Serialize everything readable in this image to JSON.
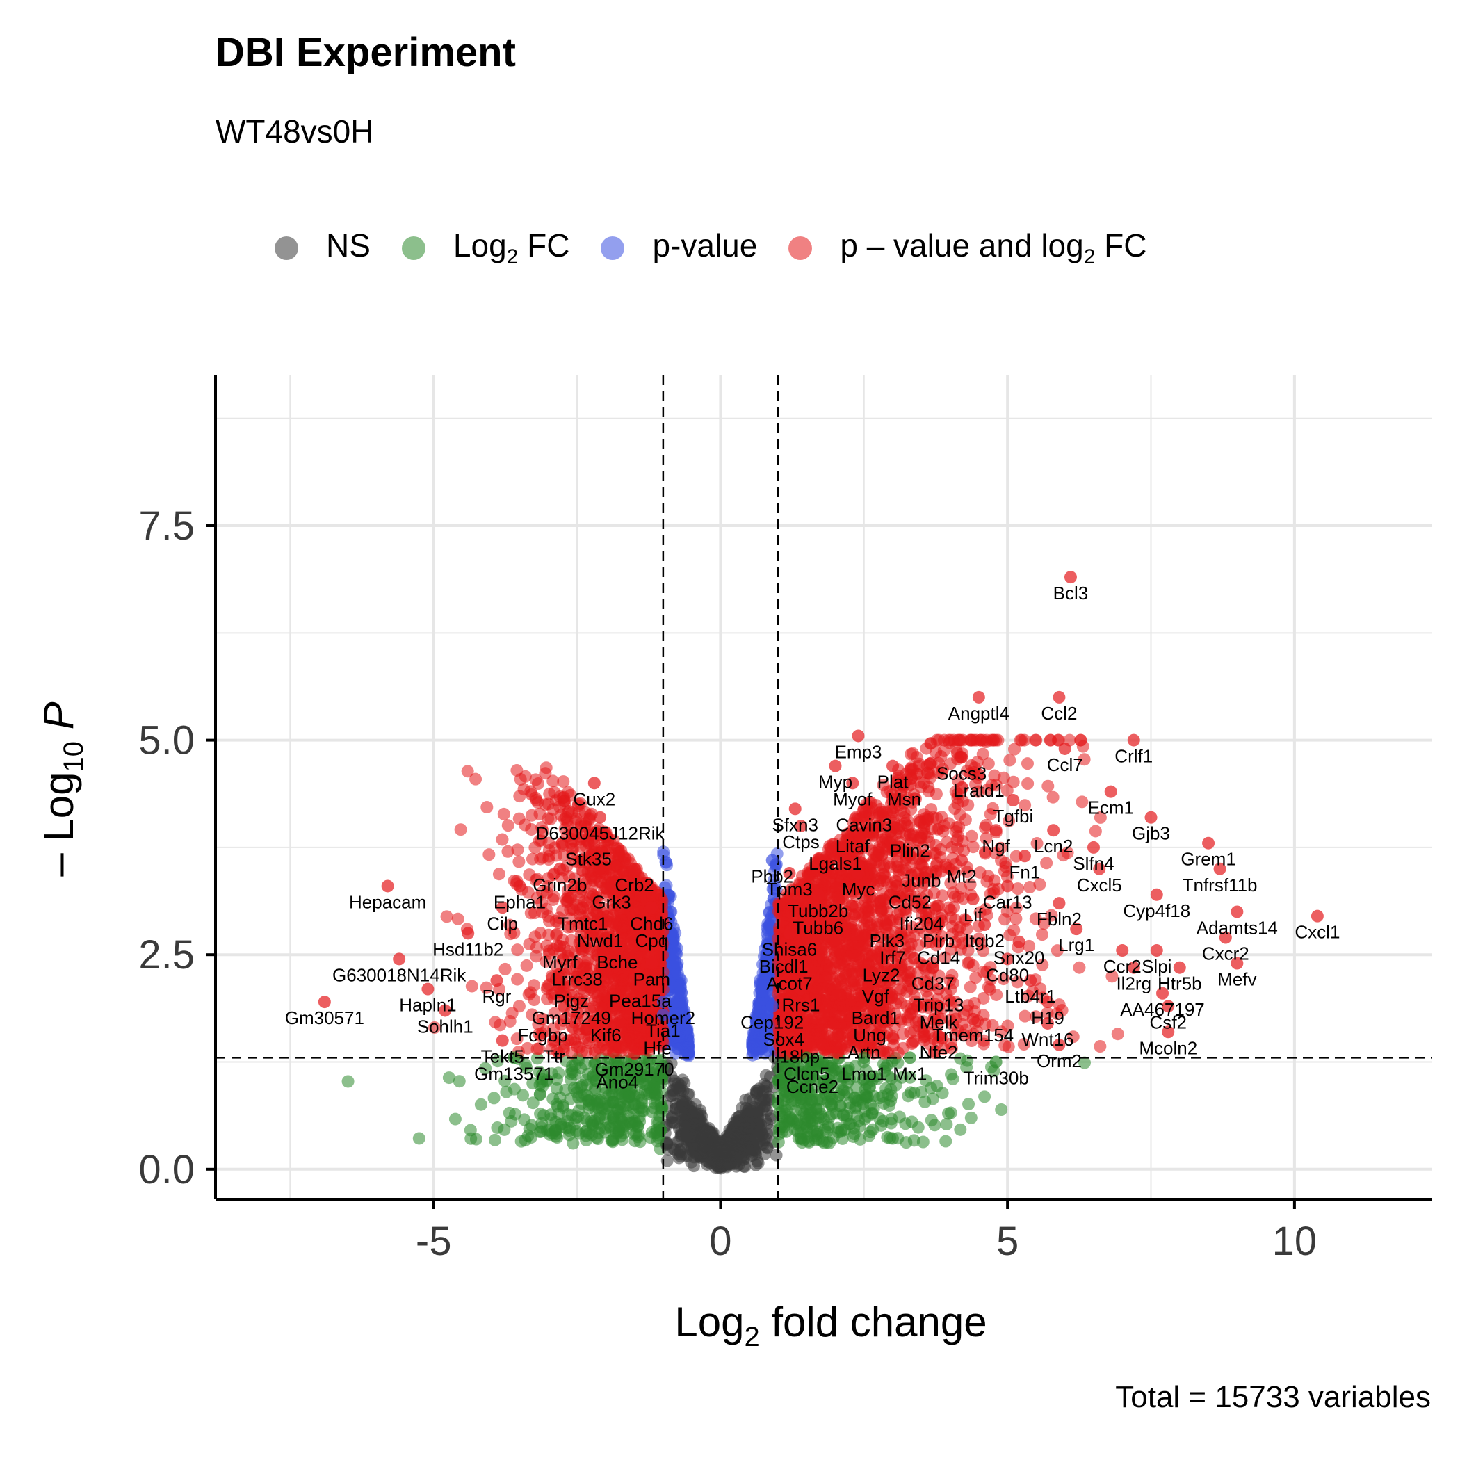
{
  "header": {
    "title": "DBI Experiment",
    "subtitle": "WT48vs0H",
    "caption": "Total = 15733 variables"
  },
  "legend": [
    {
      "label": "NS",
      "sub": "",
      "suffix": "",
      "color": "#3b3b3b"
    },
    {
      "label": "Log",
      "sub": "2",
      "suffix": " FC",
      "color": "#2e8b2e"
    },
    {
      "label": "p-value",
      "sub": "",
      "suffix": "",
      "color": "#3a50e0"
    },
    {
      "label": "p – value and log",
      "sub": "2",
      "suffix": " FC",
      "color": "#e41a1c"
    }
  ],
  "colors": {
    "NS": "#3b3b3b",
    "Log2FC": "#2e8b2e",
    "pvalue": "#3a50e0",
    "both": "#e41a1c",
    "grid": "#e6e6e6"
  },
  "chart_data": {
    "type": "scatter",
    "xlabel": {
      "main": "Log",
      "sub": "2",
      "rest": " fold change"
    },
    "ylabel": {
      "prefix": "– Log",
      "sub": "10",
      "var": "P"
    },
    "xlim": [
      -8.8,
      12.4
    ],
    "ylim": [
      -0.35,
      9.25
    ],
    "x_ticks": [
      -5,
      0,
      5,
      10
    ],
    "x_tick_labels": [
      "-5",
      "0",
      "5",
      "10"
    ],
    "y_ticks": [
      0.0,
      2.5,
      5.0,
      7.5
    ],
    "y_tick_labels": [
      "0.0",
      "2.5",
      "5.0",
      "7.5"
    ],
    "grid": true,
    "legend_position": "top",
    "thresholds": {
      "fc_cutoff": [
        -1,
        1
      ],
      "p_cutoff_neglog10": 1.3
    },
    "total_variables": 15733,
    "labeled_points": [
      {
        "gene": "Bcl3",
        "x": 6.1,
        "y": 6.9
      },
      {
        "gene": "Angptl4",
        "x": 4.5,
        "y": 5.5
      },
      {
        "gene": "Ccl2",
        "x": 5.9,
        "y": 5.5
      },
      {
        "gene": "Emp3",
        "x": 2.4,
        "y": 5.05
      },
      {
        "gene": "Myp",
        "x": 2.0,
        "y": 4.7
      },
      {
        "gene": "Plat",
        "x": 3.0,
        "y": 4.7
      },
      {
        "gene": "Socs3",
        "x": 4.2,
        "y": 4.8
      },
      {
        "gene": "Ccl7",
        "x": 6.0,
        "y": 4.9
      },
      {
        "gene": "Crlf1",
        "x": 7.2,
        "y": 5.0
      },
      {
        "gene": "Lratd1",
        "x": 4.5,
        "y": 4.6
      },
      {
        "gene": "Myof",
        "x": 2.3,
        "y": 4.5
      },
      {
        "gene": "Msn",
        "x": 3.2,
        "y": 4.5
      },
      {
        "gene": "Ecm1",
        "x": 6.8,
        "y": 4.4
      },
      {
        "gene": "Tgfbi",
        "x": 5.1,
        "y": 4.3
      },
      {
        "gene": "Cux2",
        "x": -2.2,
        "y": 4.5
      },
      {
        "gene": "Sfxn3",
        "x": 1.3,
        "y": 4.2
      },
      {
        "gene": "Cavin3",
        "x": 2.5,
        "y": 4.2
      },
      {
        "gene": "Gjb3",
        "x": 7.5,
        "y": 4.1
      },
      {
        "gene": "Ctps",
        "x": 1.4,
        "y": 4.0
      },
      {
        "gene": "Litaf",
        "x": 2.3,
        "y": 3.95
      },
      {
        "gene": "Ngf",
        "x": 4.8,
        "y": 3.95
      },
      {
        "gene": "Lcn2",
        "x": 5.8,
        "y": 3.95
      },
      {
        "gene": "D630045J12Rik",
        "x": -2.1,
        "y": 4.1
      },
      {
        "gene": "Plin2",
        "x": 3.3,
        "y": 3.9
      },
      {
        "gene": "Lgals1",
        "x": 2.0,
        "y": 3.75
      },
      {
        "gene": "Stk35",
        "x": -2.3,
        "y": 3.8
      },
      {
        "gene": "Pbb2",
        "x": 0.9,
        "y": 3.6
      },
      {
        "gene": "Mt2",
        "x": 4.2,
        "y": 3.6
      },
      {
        "gene": "Fn1",
        "x": 5.3,
        "y": 3.65
      },
      {
        "gene": "Slfn4",
        "x": 6.5,
        "y": 3.75
      },
      {
        "gene": "Grem1",
        "x": 8.5,
        "y": 3.8
      },
      {
        "gene": "Grin2b",
        "x": -2.8,
        "y": 3.5
      },
      {
        "gene": "Crb2",
        "x": -1.5,
        "y": 3.5
      },
      {
        "gene": "Tpm3",
        "x": 1.2,
        "y": 3.45
      },
      {
        "gene": "Myc",
        "x": 2.4,
        "y": 3.45
      },
      {
        "gene": "Junb",
        "x": 3.5,
        "y": 3.55
      },
      {
        "gene": "Cxcl5",
        "x": 6.6,
        "y": 3.5
      },
      {
        "gene": "Tnfrsf11b",
        "x": 8.7,
        "y": 3.5
      },
      {
        "gene": "Epha1",
        "x": -3.5,
        "y": 3.3
      },
      {
        "gene": "Grk3",
        "x": -1.9,
        "y": 3.3
      },
      {
        "gene": "Car13",
        "x": 5.0,
        "y": 3.3
      },
      {
        "gene": "Cd52",
        "x": 3.3,
        "y": 3.3
      },
      {
        "gene": "Tubb2b",
        "x": 1.7,
        "y": 3.2
      },
      {
        "gene": "Hepacam",
        "x": -5.8,
        "y": 3.3
      },
      {
        "gene": "Chd6",
        "x": -1.2,
        "y": 3.05
      },
      {
        "gene": "Tmtc1",
        "x": -2.4,
        "y": 3.05
      },
      {
        "gene": "Cyp4f18",
        "x": 7.6,
        "y": 3.2
      },
      {
        "gene": "Lif",
        "x": 4.4,
        "y": 3.15
      },
      {
        "gene": "Fbln2",
        "x": 5.9,
        "y": 3.1
      },
      {
        "gene": "Ifi204",
        "x": 3.5,
        "y": 3.05
      },
      {
        "gene": "Cilp",
        "x": -3.8,
        "y": 3.05
      },
      {
        "gene": "Tubb6",
        "x": 1.7,
        "y": 3.0
      },
      {
        "gene": "Adamts14",
        "x": 9.0,
        "y": 3.0
      },
      {
        "gene": "Cpq",
        "x": -1.2,
        "y": 2.85
      },
      {
        "gene": "Nwd1",
        "x": -2.1,
        "y": 2.85
      },
      {
        "gene": "Itgb2",
        "x": 4.6,
        "y": 2.85
      },
      {
        "gene": "Plk3",
        "x": 2.9,
        "y": 2.85
      },
      {
        "gene": "Pirb",
        "x": 3.8,
        "y": 2.85
      },
      {
        "gene": "Lrg1",
        "x": 6.2,
        "y": 2.8
      },
      {
        "gene": "Shisa6",
        "x": 1.2,
        "y": 2.75
      },
      {
        "gene": "Hsd11b2",
        "x": -4.4,
        "y": 2.75
      },
      {
        "gene": "Cxcr2",
        "x": 8.8,
        "y": 2.7
      },
      {
        "gene": "Cxcl1",
        "x": 10.4,
        "y": 2.95
      },
      {
        "gene": "Snx20",
        "x": 5.2,
        "y": 2.65
      },
      {
        "gene": "Irf7",
        "x": 3.0,
        "y": 2.65
      },
      {
        "gene": "Cd14",
        "x": 3.8,
        "y": 2.65
      },
      {
        "gene": "Bche",
        "x": -1.8,
        "y": 2.6
      },
      {
        "gene": "Myrf",
        "x": -2.8,
        "y": 2.6
      },
      {
        "gene": "Bicdl1",
        "x": 1.1,
        "y": 2.55
      },
      {
        "gene": "Ccr2",
        "x": 7.0,
        "y": 2.55
      },
      {
        "gene": "Slpi",
        "x": 7.6,
        "y": 2.55
      },
      {
        "gene": "G630018N14Rik",
        "x": -5.6,
        "y": 2.45
      },
      {
        "gene": "Cd80",
        "x": 5.0,
        "y": 2.45
      },
      {
        "gene": "Lrrc38",
        "x": -2.5,
        "y": 2.4
      },
      {
        "gene": "Pam",
        "x": -1.2,
        "y": 2.4
      },
      {
        "gene": "Lyz2",
        "x": 2.8,
        "y": 2.45
      },
      {
        "gene": "Acot7",
        "x": 1.2,
        "y": 2.35
      },
      {
        "gene": "Cd37",
        "x": 3.7,
        "y": 2.35
      },
      {
        "gene": "Il2rg",
        "x": 7.2,
        "y": 2.35
      },
      {
        "gene": "Htr5b",
        "x": 8.0,
        "y": 2.35
      },
      {
        "gene": "Mefv",
        "x": 9.0,
        "y": 2.4
      },
      {
        "gene": "Ltb4r1",
        "x": 5.4,
        "y": 2.2
      },
      {
        "gene": "Vgf",
        "x": 2.7,
        "y": 2.2
      },
      {
        "gene": "Trip13",
        "x": 3.8,
        "y": 2.1
      },
      {
        "gene": "Rgr",
        "x": -3.9,
        "y": 2.2
      },
      {
        "gene": "Pigz",
        "x": -2.6,
        "y": 2.15
      },
      {
        "gene": "Pea15a",
        "x": -1.4,
        "y": 2.15
      },
      {
        "gene": "Rrs1",
        "x": 1.4,
        "y": 2.1
      },
      {
        "gene": "AA467197",
        "x": 7.7,
        "y": 2.05
      },
      {
        "gene": "Hapln1",
        "x": -5.1,
        "y": 2.1
      },
      {
        "gene": "Bard1",
        "x": 2.7,
        "y": 1.95
      },
      {
        "gene": "Gm17249",
        "x": -2.6,
        "y": 1.95
      },
      {
        "gene": "Homer2",
        "x": -1.0,
        "y": 1.95
      },
      {
        "gene": "H19",
        "x": 5.7,
        "y": 1.95
      },
      {
        "gene": "Melk",
        "x": 3.8,
        "y": 1.9
      },
      {
        "gene": "Cep192",
        "x": 0.9,
        "y": 1.9
      },
      {
        "gene": "Csf2",
        "x": 7.8,
        "y": 1.9
      },
      {
        "gene": "Gm30571",
        "x": -6.9,
        "y": 1.95
      },
      {
        "gene": "Sohlh1",
        "x": -4.8,
        "y": 1.85
      },
      {
        "gene": "Kif6",
        "x": -2.0,
        "y": 1.75
      },
      {
        "gene": "Tia1",
        "x": -1.0,
        "y": 1.8
      },
      {
        "gene": "Fcgbp",
        "x": -3.1,
        "y": 1.75
      },
      {
        "gene": "Sox4",
        "x": 1.1,
        "y": 1.7
      },
      {
        "gene": "Ung",
        "x": 2.6,
        "y": 1.75
      },
      {
        "gene": "Tmem154",
        "x": 4.4,
        "y": 1.75
      },
      {
        "gene": "Wnt16",
        "x": 5.7,
        "y": 1.7
      },
      {
        "gene": "Mcoln2",
        "x": 7.8,
        "y": 1.6
      },
      {
        "gene": "Hfe",
        "x": -1.1,
        "y": 1.6
      },
      {
        "gene": "Artn",
        "x": 2.5,
        "y": 1.55
      },
      {
        "gene": "Il18bp",
        "x": 1.3,
        "y": 1.5
      },
      {
        "gene": "Tekt5",
        "x": -3.8,
        "y": 1.5
      },
      {
        "gene": "Ttr",
        "x": -2.9,
        "y": 1.5
      },
      {
        "gene": "Nfe2",
        "x": 3.8,
        "y": 1.55
      },
      {
        "gene": "Orm2",
        "x": 5.9,
        "y": 1.45
      },
      {
        "gene": "Gm29170",
        "x": -1.5,
        "y": 1.35
      },
      {
        "gene": "Clcn5",
        "x": 1.5,
        "y": 1.3
      },
      {
        "gene": "Lmo1",
        "x": 2.5,
        "y": 1.3
      },
      {
        "gene": "Gm13571",
        "x": -3.6,
        "y": 1.3
      },
      {
        "gene": "Mx1",
        "x": 3.3,
        "y": 1.3
      },
      {
        "gene": "Trim30b",
        "x": 4.8,
        "y": 1.25
      },
      {
        "gene": "Ano4",
        "x": -1.8,
        "y": 1.2
      },
      {
        "gene": "Ccne2",
        "x": 1.6,
        "y": 1.15
      }
    ]
  }
}
